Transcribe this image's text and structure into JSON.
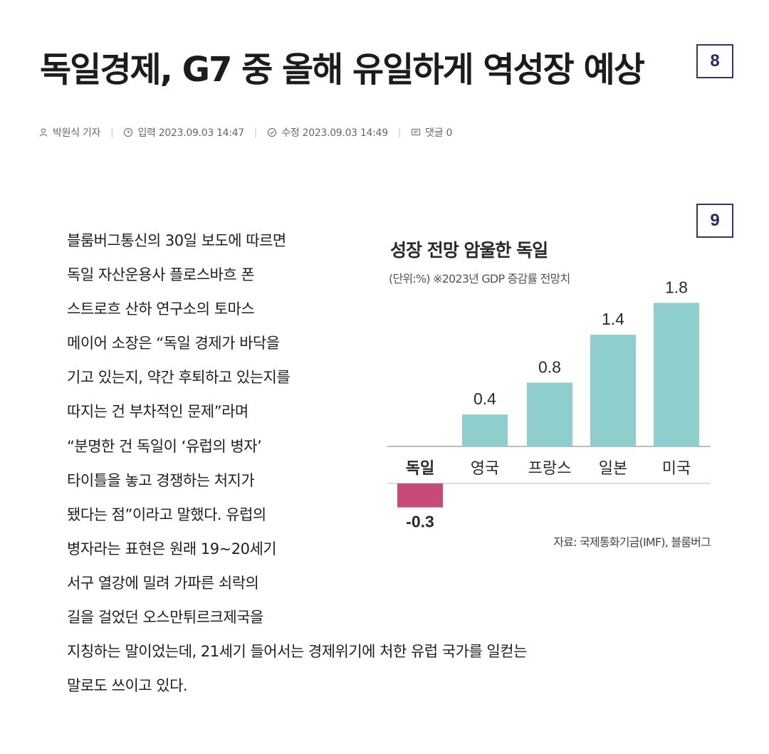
{
  "headline": "독일경제, G7 중 올해 유일하게 역성장 예상",
  "badges": [
    "8",
    "9"
  ],
  "meta": {
    "author": "박원식 기자",
    "published": "입력 2023.09.03 14:47",
    "modified": "수정 2023.09.03 14:49",
    "comments": "댓글 0",
    "icons": [
      "person-icon",
      "clock-icon",
      "check-circle-icon",
      "comment-icon"
    ]
  },
  "article": {
    "lines": [
      "블룸버그통신의 30일 보도에 따르면",
      "독일 자산운용사 플로스바흐 폰",
      "스트로흐 산하 연구소의 토마스",
      "메이어 소장은 “독일 경제가 바닥을",
      "기고 있는지, 약간 후퇴하고 있는지를",
      "따지는 건 부차적인 문제”라며",
      "“분명한 건 독일이 ‘유럽의 병자’",
      "타이틀을 놓고 경쟁하는 처지가",
      "됐다는 점”이라고 말했다. 유럽의",
      "병자라는 표현은 원래 19~20세기",
      "서구 열강에 밀려 가파른 쇠락의",
      "길을 걸었던 오스만튀르크제국을",
      "지칭하는 말이었는데, 21세기 들어서는 경제위기에 처한 유럽 국가를 일컫는",
      "말로도 쓰이고 있다."
    ]
  },
  "chart": {
    "title": "성장 전망 암울한 독일",
    "subtitle": "(단위:%) ※2023년 GDP 증감률 전망치",
    "source": "자료: 국제통화기금(IMF), 블룸버그"
  },
  "chart_data": {
    "type": "bar",
    "title": "성장 전망 암울한 독일",
    "categories": [
      "독일",
      "영국",
      "프랑스",
      "일본",
      "미국"
    ],
    "values": [
      -0.3,
      0.4,
      0.8,
      1.4,
      1.8
    ],
    "value_labels": [
      "-0.3",
      "0.4",
      "0.8",
      "1.4",
      "1.8"
    ],
    "unit": "%",
    "colors": {
      "positive": "#8ecfcd",
      "negative": "#c84a78",
      "baseline": "#bdbdbd"
    },
    "grid": false,
    "legend": "none",
    "highlight_category": "독일"
  }
}
